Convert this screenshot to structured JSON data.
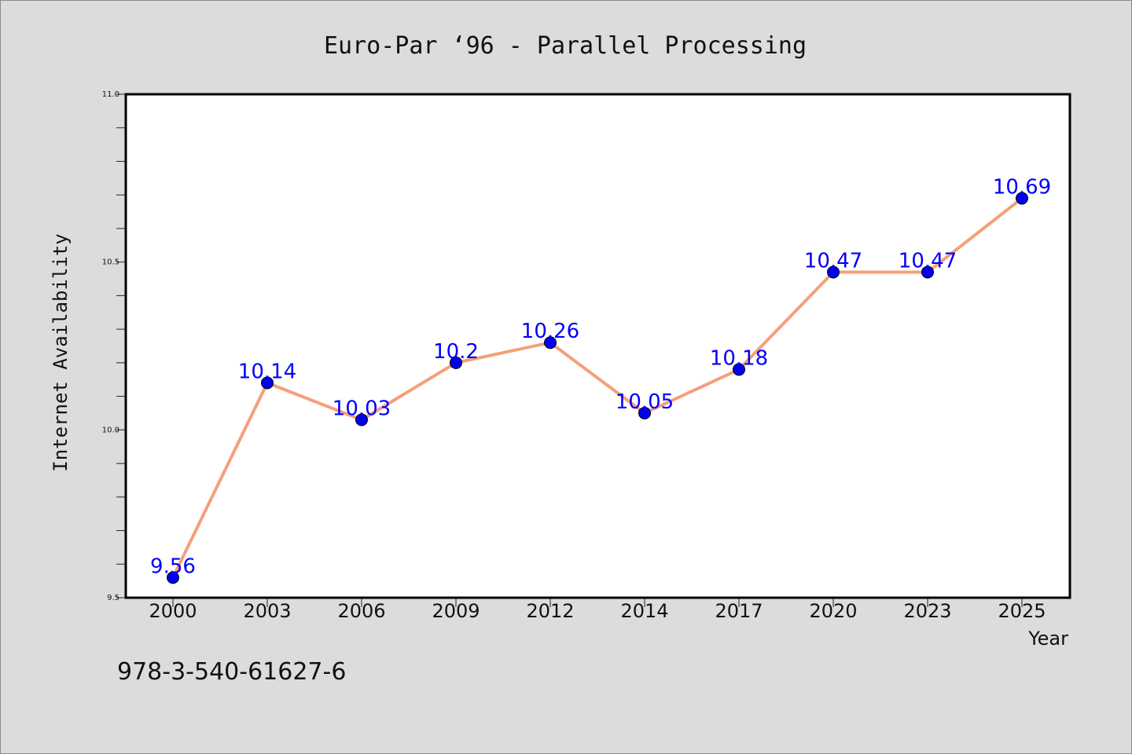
{
  "chart_data": {
    "type": "line",
    "title": "Euro-Par ‘96 - Parallel Processing",
    "xlabel": "Year",
    "ylabel": "Internet Availability",
    "categories": [
      "2000",
      "2003",
      "2006",
      "2009",
      "2012",
      "2014",
      "2017",
      "2020",
      "2023",
      "2025"
    ],
    "series": [
      {
        "values": [
          9.56,
          10.14,
          10.03,
          10.2,
          10.26,
          10.05,
          10.18,
          10.47,
          10.47,
          10.69
        ],
        "labels": [
          "9.56",
          "10.14",
          "10.03",
          "10.2",
          "10.26",
          "10.05",
          "10.18",
          "10.47",
          "10.47",
          "10.69"
        ],
        "line_color": "#f4a07a",
        "marker_color": "#0000ee",
        "label_color": "#0000ff"
      }
    ],
    "ylim": [
      9.5,
      11.0
    ],
    "yticks": [
      "9.5",
      "10.0",
      "10.5",
      "11.0"
    ],
    "grid": false,
    "footer_text": "978-3-540-61627-6"
  }
}
